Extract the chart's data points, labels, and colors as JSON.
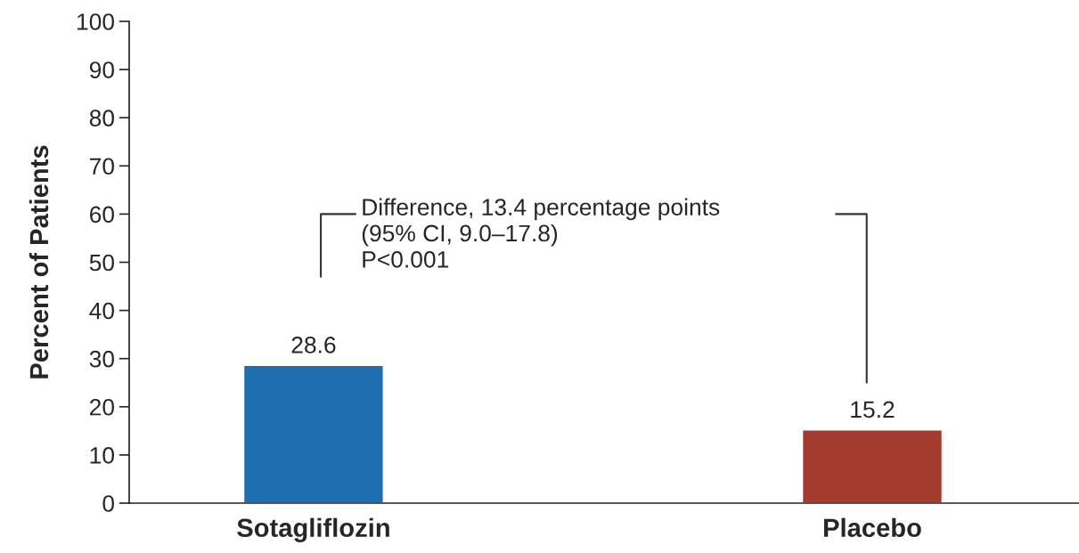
{
  "chart_data": {
    "type": "bar",
    "ylabel": "Percent of Patients",
    "categories": [
      "Sotagliflozin",
      "Placebo"
    ],
    "values": [
      28.6,
      15.2
    ],
    "colors": [
      "#1f6fb0",
      "#a33b2e"
    ],
    "ylim": [
      0,
      100
    ],
    "yticks": [
      0,
      10,
      20,
      30,
      40,
      50,
      60,
      70,
      80,
      90,
      100
    ],
    "data_labels": true,
    "grid": false,
    "legend": false,
    "annotations": [
      "Difference, 13.4 percentage points\n(95% CI, 9.0–17.8)\nP<0.001"
    ]
  }
}
